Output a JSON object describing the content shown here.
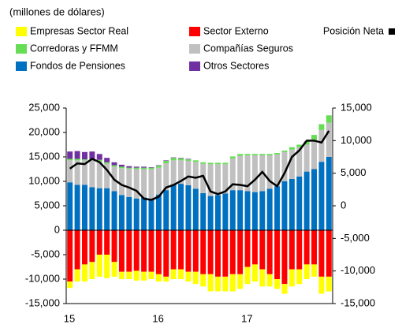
{
  "chart_data": {
    "type": "bar",
    "stacked": true,
    "subtitle": "(millones de dólares)",
    "categories": [
      "15",
      null,
      null,
      null,
      null,
      null,
      null,
      null,
      null,
      null,
      null,
      null,
      "16",
      null,
      null,
      null,
      null,
      null,
      null,
      null,
      null,
      null,
      null,
      null,
      "17",
      null,
      null,
      null,
      null,
      null,
      null,
      null,
      null,
      null,
      null,
      null
    ],
    "series": [
      {
        "name": "Fondos de Pensiones",
        "color": "#0070c0",
        "values": [
          9800,
          9300,
          9300,
          8800,
          8600,
          8600,
          8000,
          7200,
          6800,
          6500,
          6700,
          6500,
          7300,
          8200,
          9300,
          9500,
          9200,
          8500,
          7600,
          7000,
          7200,
          7500,
          8200,
          8200,
          8000,
          7800,
          8000,
          8500,
          9000,
          10000,
          10500,
          11000,
          12000,
          12500,
          14000,
          15000
        ]
      },
      {
        "name": "Compañías Seguros",
        "color": "#c0c0c0",
        "values": [
          4500,
          5000,
          5000,
          5500,
          5500,
          5000,
          5000,
          5500,
          5800,
          6000,
          5800,
          6000,
          5500,
          5500,
          5000,
          4800,
          5000,
          5500,
          6000,
          6500,
          6300,
          6000,
          6500,
          7000,
          7300,
          7500,
          7300,
          6800,
          6500,
          6000,
          6000,
          6000,
          5500,
          6000,
          6500,
          7000
        ]
      },
      {
        "name": "Corredoras y FFMM",
        "color": "#66dd55",
        "values": [
          300,
          300,
          200,
          300,
          300,
          300,
          300,
          300,
          200,
          300,
          300,
          300,
          400,
          500,
          500,
          400,
          300,
          300,
          300,
          300,
          300,
          300,
          400,
          400,
          300,
          300,
          300,
          300,
          300,
          300,
          500,
          500,
          700,
          1000,
          1200,
          1500
        ]
      },
      {
        "name": "Otros Sectores",
        "color": "#7030a0",
        "values": [
          1500,
          1600,
          1500,
          1500,
          1200,
          900,
          600,
          400,
          300,
          200,
          200,
          100,
          100,
          100,
          100,
          100,
          100,
          0,
          0,
          0,
          0,
          0,
          0,
          0,
          0,
          0,
          0,
          0,
          0,
          0,
          0,
          0,
          0,
          0,
          0,
          0
        ]
      },
      {
        "name": "Sector Externo",
        "color": "#ff0000",
        "values": [
          -10500,
          -8000,
          -7000,
          -6500,
          -5000,
          -5000,
          -6500,
          -8500,
          -8500,
          -8300,
          -8500,
          -8500,
          -9000,
          -9500,
          -8000,
          -8000,
          -8500,
          -8500,
          -9000,
          -9000,
          -9500,
          -9500,
          -9000,
          -9000,
          -7500,
          -7000,
          -8000,
          -9000,
          -10000,
          -11000,
          -8000,
          -8000,
          -7000,
          -7000,
          -9500,
          -9500
        ]
      },
      {
        "name": "Empresas Sector Real",
        "color": "#ffff00",
        "values": [
          -1300,
          -2500,
          -3500,
          -3500,
          -4500,
          -4800,
          -3000,
          -1500,
          -1500,
          -2000,
          -1800,
          -1500,
          -1500,
          -1000,
          -2000,
          -2000,
          -2000,
          -2500,
          -2500,
          -3500,
          -3000,
          -3000,
          -3500,
          -3000,
          -3500,
          -3500,
          -3500,
          -2500,
          -2000,
          -2000,
          -3500,
          -3000,
          -3000,
          -2500,
          -3500,
          -3000
        ]
      },
      {
        "name": "Posición Neta",
        "color": "#000000",
        "type": "line",
        "axis": "y2",
        "values": [
          5700,
          6500,
          6400,
          7200,
          6700,
          5500,
          4000,
          3200,
          2800,
          2300,
          1100,
          900,
          1400,
          2800,
          3200,
          3800,
          4500,
          4300,
          4600,
          2200,
          1800,
          2200,
          3300,
          3200,
          3000,
          4000,
          5200,
          3800,
          3000,
          5000,
          7500,
          8500,
          10000,
          10000,
          9700,
          11500
        ]
      }
    ],
    "ylim": [
      -15000,
      25000
    ],
    "yticks": [
      {
        "value": -15000,
        "label": "-15,000"
      },
      {
        "value": -10000,
        "label": "-10,000"
      },
      {
        "value": -5000,
        "label": "-5,000"
      },
      0,
      {
        "value": 5000,
        "label": "5,000"
      },
      {
        "value": 10000,
        "label": "10,000"
      },
      {
        "value": 15000,
        "label": "15,000"
      },
      {
        "value": 20000,
        "label": "20,000"
      },
      {
        "value": 25000,
        "label": "25,000"
      }
    ],
    "y2lim": [
      -15000,
      15000
    ],
    "y2ticks": [
      {
        "value": -15000,
        "label": "-15,000"
      },
      {
        "value": -10000,
        "label": "-10,000"
      },
      {
        "value": -5000,
        "label": "-5,000"
      },
      0,
      {
        "value": 5000,
        "label": "5,000"
      },
      {
        "value": 10000,
        "label": "10,000"
      },
      {
        "value": 15000,
        "label": "15,000"
      }
    ]
  }
}
